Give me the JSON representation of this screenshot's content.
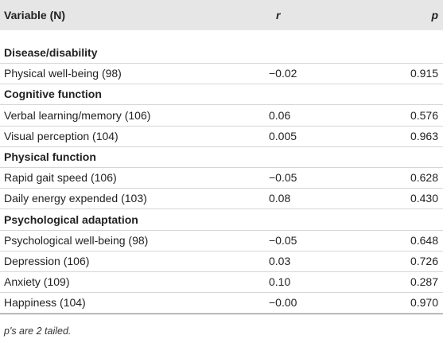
{
  "table": {
    "header": [
      "Variable (N)",
      "r",
      "p"
    ],
    "sections": [
      {
        "title": "Disease/disability",
        "rows": [
          [
            "Physical well-being (98)",
            "−0.02",
            "0.915"
          ]
        ]
      },
      {
        "title": "Cognitive function",
        "rows": [
          [
            "Verbal learning/memory (106)",
            "0.06",
            "0.576"
          ],
          [
            "Visual perception (104)",
            "0.005",
            "0.963"
          ]
        ]
      },
      {
        "title": "Physical function",
        "rows": [
          [
            "Rapid gait speed (106)",
            "−0.05",
            "0.628"
          ],
          [
            "Daily energy expended (103)",
            "0.08",
            "0.430"
          ]
        ]
      },
      {
        "title": "Psychological adaptation",
        "rows": [
          [
            "Psychological well-being (98)",
            "−0.05",
            "0.648"
          ],
          [
            "Depression (106)",
            "0.03",
            "0.726"
          ],
          [
            "Anxiety (109)",
            "0.10",
            "0.287"
          ],
          [
            "Happiness (104)",
            "−0.00",
            "0.970"
          ]
        ]
      }
    ]
  },
  "footnote": "p's are 2 tailed."
}
